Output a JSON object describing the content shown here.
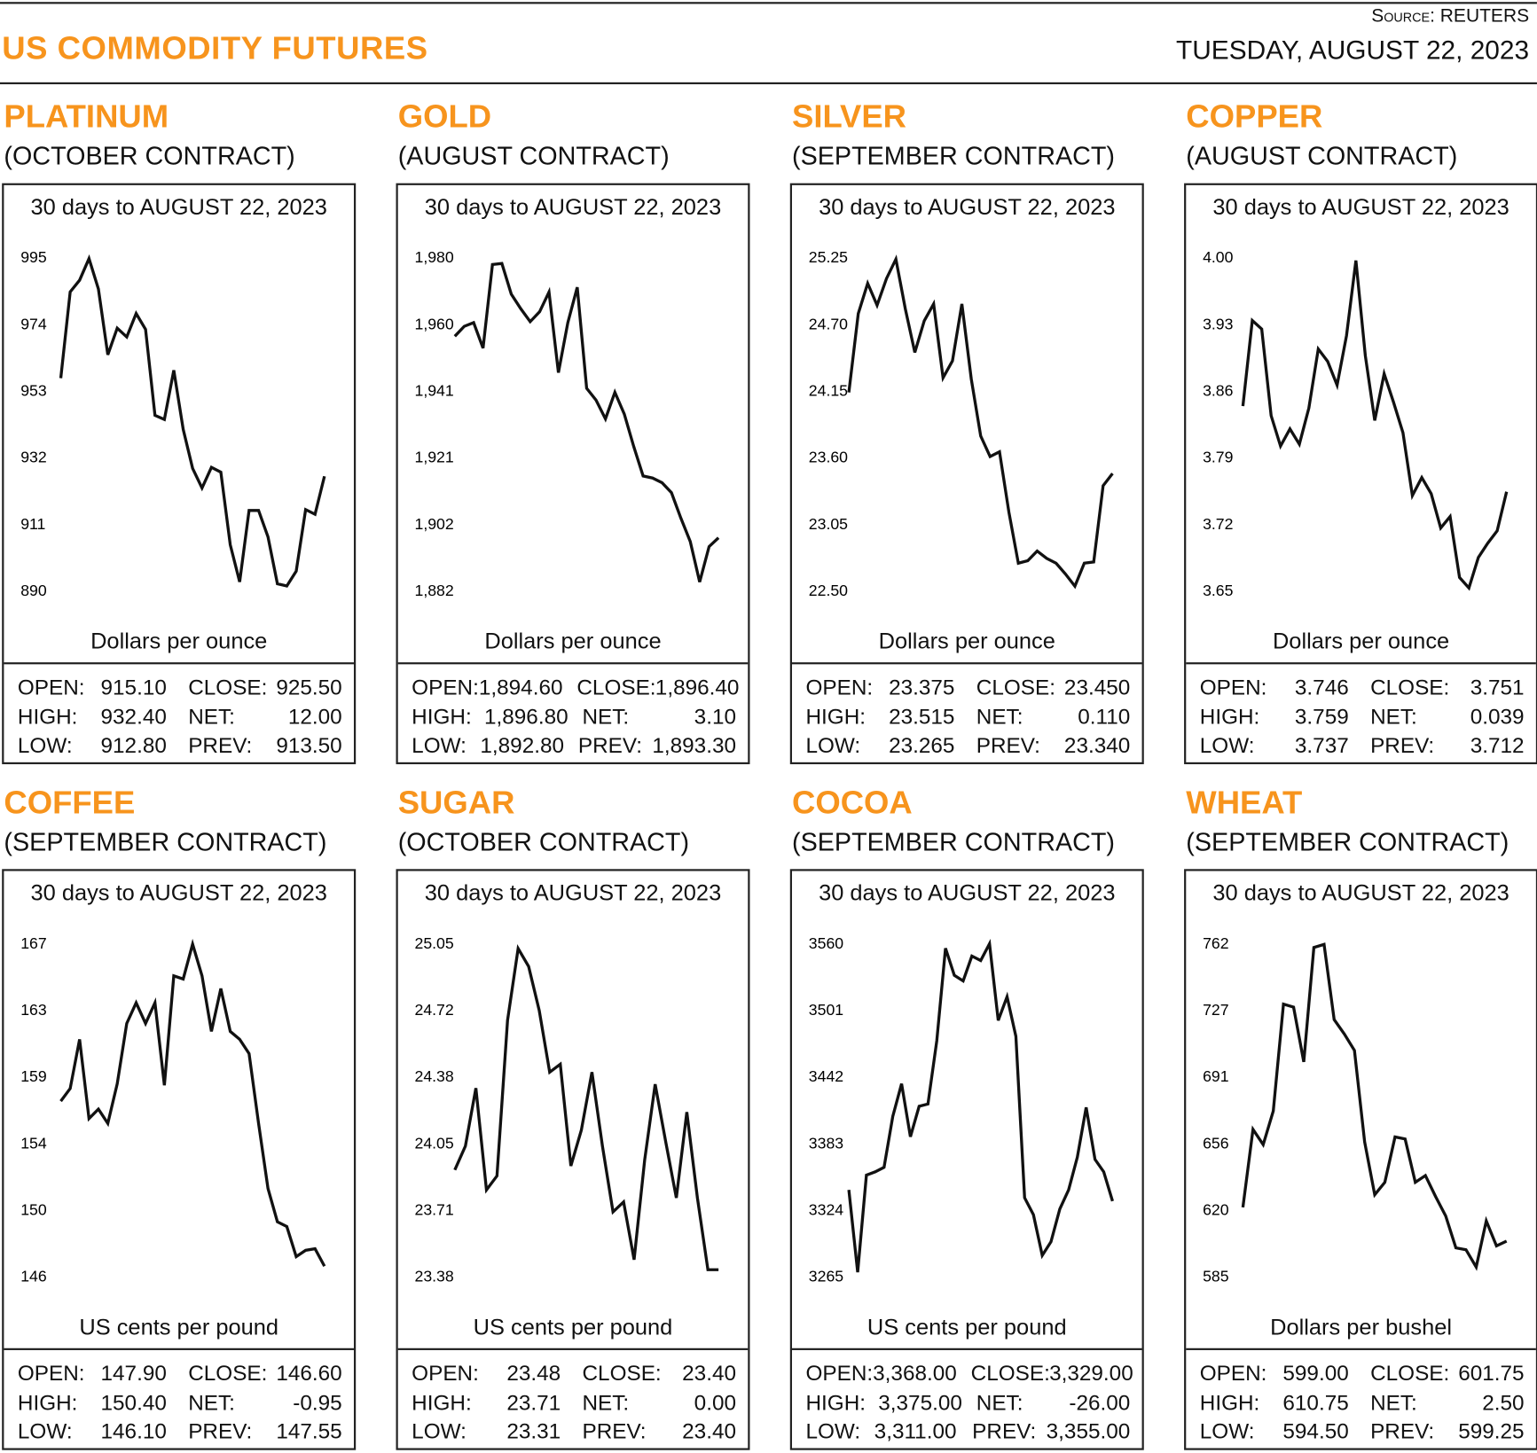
{
  "header": {
    "title": "US COMMODITY FUTURES",
    "source": "Source: REUTERS",
    "date": "TUESDAY, AUGUST 22, 2023"
  },
  "colors": {
    "accent": "#f7941d",
    "line": "#111111"
  },
  "chart_data": [
    {
      "type": "line",
      "name": "PLATINUM",
      "contract": "(OCTOBER CONTRACT)",
      "title": "30 days to AUGUST 22, 2023",
      "ylabel": "Dollars per ounce",
      "yticks": [
        "995",
        "974",
        "953",
        "932",
        "911",
        "890"
      ],
      "ylim": [
        890,
        995
      ],
      "values": [
        956.7,
        983.9,
        987.6,
        994.4,
        984.8,
        964.1,
        972.5,
        969.7,
        977.1,
        972.1,
        945.0,
        943.7,
        959.2,
        940.6,
        928.3,
        922.1,
        928.6,
        927.1,
        904.2,
        892.5,
        915.0,
        915.0,
        906.7,
        891.9,
        891.2,
        895.9,
        915.3,
        913.8,
        925.8
      ],
      "stats": {
        "open_label": "OPEN:",
        "open": "915.10",
        "high_label": "HIGH:",
        "high": "932.40",
        "low_label": "LOW:",
        "low": "912.80",
        "close_label": "CLOSE:",
        "close": "925.50",
        "net_label": "NET:",
        "net": "12.00",
        "prev_label": "PREV:",
        "prev": "913.50"
      }
    },
    {
      "type": "line",
      "name": "GOLD",
      "contract": "(AUGUST CONTRACT)",
      "title": "30 days to AUGUST 22, 2023",
      "ylabel": "Dollars per ounce",
      "yticks": [
        "1,980",
        "1,960",
        "1,941",
        "1,921",
        "1,902",
        "1,882"
      ],
      "ylim": [
        1882,
        1980
      ],
      "values": [
        1956.6,
        1959.5,
        1960.6,
        1953.1,
        1977.7,
        1978.0,
        1969.0,
        1964.7,
        1960.9,
        1963.8,
        1969.6,
        1945.9,
        1960.6,
        1971.0,
        1941.3,
        1937.8,
        1932.3,
        1940.1,
        1933.7,
        1924.2,
        1915.5,
        1914.9,
        1913.5,
        1910.6,
        1903.1,
        1896.2,
        1884.3,
        1894.7,
        1897.3
      ],
      "stats": {
        "open_label": "OPEN:",
        "open": "1,894.60",
        "high_label": "HIGH:",
        "high": "1,896.80",
        "low_label": "LOW:",
        "low": "1,892.80",
        "close_label": "CLOSE:",
        "close": "1,896.40",
        "net_label": "NET:",
        "net": "3.10",
        "prev_label": "PREV:",
        "prev": "1,893.30"
      }
    },
    {
      "type": "line",
      "name": "SILVER",
      "contract": "(SEPTEMBER CONTRACT)",
      "title": "30 days to AUGUST 22, 2023",
      "ylabel": "Dollars per ounce",
      "yticks": [
        "25.25",
        "24.70",
        "24.15",
        "23.60",
        "23.05",
        "22.50"
      ],
      "ylim": [
        22.5,
        25.25
      ],
      "values": [
        24.13,
        24.78,
        25.03,
        24.85,
        25.07,
        25.23,
        24.82,
        24.46,
        24.72,
        24.86,
        24.25,
        24.39,
        24.86,
        24.24,
        23.77,
        23.6,
        23.64,
        23.14,
        22.72,
        22.74,
        22.82,
        22.76,
        22.72,
        22.63,
        22.53,
        22.72,
        22.73,
        23.36,
        23.46
      ],
      "stats": {
        "open_label": "OPEN:",
        "open": "23.375",
        "high_label": "HIGH:",
        "high": "23.515",
        "low_label": "LOW:",
        "low": "23.265",
        "close_label": "CLOSE:",
        "close": "23.450",
        "net_label": "NET:",
        "net": "0.110",
        "prev_label": "PREV:",
        "prev": "23.340"
      }
    },
    {
      "type": "line",
      "name": "COPPER",
      "contract": "(AUGUST CONTRACT)",
      "title": "30 days to AUGUST 22, 2023",
      "ylabel": "Dollars per ounce",
      "yticks": [
        "4.00",
        "3.93",
        "3.86",
        "3.79",
        "3.72",
        "3.65"
      ],
      "ylim": [
        3.65,
        4.0
      ],
      "values": [
        3.843,
        3.933,
        3.924,
        3.833,
        3.801,
        3.819,
        3.803,
        3.841,
        3.903,
        3.89,
        3.865,
        3.917,
        3.996,
        3.896,
        3.828,
        3.877,
        3.847,
        3.815,
        3.749,
        3.768,
        3.751,
        3.715,
        3.727,
        3.663,
        3.652,
        3.684,
        3.699,
        3.712,
        3.753
      ],
      "stats": {
        "open_label": "OPEN:",
        "open": "3.746",
        "high_label": "HIGH:",
        "high": "3.759",
        "low_label": "LOW:",
        "low": "3.737",
        "close_label": "CLOSE:",
        "close": "3.751",
        "net_label": "NET:",
        "net": "0.039",
        "prev_label": "PREV:",
        "prev": "3.712"
      }
    },
    {
      "type": "line",
      "name": "COFFEE",
      "contract": "(SEPTEMBER CONTRACT)",
      "title": "30 days to AUGUST 22, 2023",
      "ylabel": "US cents per pound",
      "yticks": [
        "167",
        "163",
        "159",
        "154",
        "150",
        "146"
      ],
      "ylim": [
        146,
        167
      ],
      "values": [
        157.0,
        157.8,
        160.9,
        155.9,
        156.5,
        155.6,
        158.1,
        161.9,
        163.2,
        161.9,
        163.2,
        158.0,
        164.9,
        164.7,
        166.9,
        164.9,
        161.4,
        164.1,
        161.4,
        160.9,
        160.0,
        155.6,
        151.5,
        149.4,
        149.1,
        147.2,
        147.6,
        147.7,
        146.6
      ],
      "stats": {
        "open_label": "OPEN:",
        "open": "147.90",
        "high_label": "HIGH:",
        "high": "150.40",
        "low_label": "LOW:",
        "low": "146.10",
        "close_label": "CLOSE:",
        "close": "146.60",
        "net_label": "NET:",
        "net": "-0.95",
        "prev_label": "PREV:",
        "prev": "147.55"
      }
    },
    {
      "type": "line",
      "name": "SUGAR",
      "contract": "(OCTOBER CONTRACT)",
      "title": "30 days to AUGUST 22, 2023",
      "ylabel": "US cents per pound",
      "yticks": [
        "25.05",
        "24.72",
        "24.38",
        "24.05",
        "23.71",
        "23.38"
      ],
      "ylim": [
        23.38,
        25.05
      ],
      "values": [
        23.91,
        24.03,
        24.32,
        23.81,
        23.88,
        24.66,
        25.02,
        24.93,
        24.71,
        24.4,
        24.44,
        23.93,
        24.11,
        24.4,
        24.03,
        23.7,
        23.75,
        23.46,
        23.96,
        24.34,
        24.05,
        23.77,
        24.2,
        23.77,
        23.41,
        23.41
      ],
      "stats": {
        "open_label": "OPEN:",
        "open": "23.48",
        "high_label": "HIGH:",
        "high": "23.71",
        "low_label": "LOW:",
        "low": "23.31",
        "close_label": "CLOSE:",
        "close": "23.40",
        "net_label": "NET:",
        "net": "0.00",
        "prev_label": "PREV:",
        "prev": "23.40"
      }
    },
    {
      "type": "line",
      "name": "COCOA",
      "contract": "(SEPTEMBER CONTRACT)",
      "title": "30 days to AUGUST 22, 2023",
      "ylabel": "US cents per pound",
      "yticks": [
        "3560",
        "3501",
        "3442",
        "3383",
        "3324",
        "3265"
      ],
      "ylim": [
        3265,
        3560
      ],
      "values": [
        3341,
        3268,
        3354,
        3357,
        3361,
        3406,
        3435,
        3388,
        3415,
        3417,
        3473,
        3555,
        3531,
        3526,
        3548,
        3544,
        3559,
        3491,
        3512,
        3477,
        3334,
        3319,
        3283,
        3295,
        3324,
        3341,
        3370,
        3414,
        3368,
        3357,
        3331
      ],
      "stats": {
        "open_label": "OPEN:",
        "open": "3,368.00",
        "high_label": "HIGH:",
        "high": "3,375.00",
        "low_label": "LOW:",
        "low": "3,311.00",
        "close_label": "CLOSE:",
        "close": "3,329.00",
        "net_label": "NET:",
        "net": "-26.00",
        "prev_label": "PREV:",
        "prev": "3,355.00"
      }
    },
    {
      "type": "line",
      "name": "WHEAT",
      "contract": "(SEPTEMBER CONTRACT)",
      "title": "30 days to AUGUST 22, 2023",
      "ylabel": "Dollars per bushel",
      "yticks": [
        "762",
        "727",
        "691",
        "656",
        "620",
        "585"
      ],
      "ylim": [
        585,
        762
      ],
      "values": [
        621.3,
        662.7,
        654.6,
        672.5,
        729.3,
        727.7,
        698.6,
        759.4,
        761.0,
        721.1,
        713.4,
        704.7,
        656.1,
        628.0,
        634.6,
        658.7,
        657.6,
        634.6,
        638.2,
        627.0,
        616.7,
        599.8,
        598.8,
        589.6,
        614.1,
        600.8,
        603.4
      ],
      "stats": {
        "open_label": "OPEN:",
        "open": "599.00",
        "high_label": "HIGH:",
        "high": "610.75",
        "low_label": "LOW:",
        "low": "594.50",
        "close_label": "CLOSE:",
        "close": "601.75",
        "net_label": "NET:",
        "net": "2.50",
        "prev_label": "PREV:",
        "prev": "599.25"
      }
    }
  ]
}
